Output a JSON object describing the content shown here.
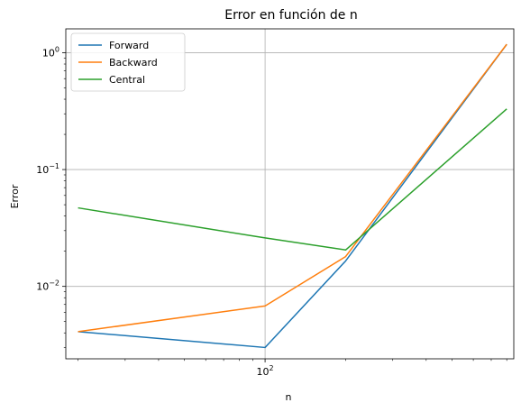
{
  "chart_data": {
    "type": "line",
    "title": "Error en función de n",
    "xlabel": "n",
    "ylabel": "Error",
    "xscale": "log",
    "yscale": "log",
    "xlim": [
      18,
      850
    ],
    "ylim": [
      0.0024,
      1.6
    ],
    "grid": true,
    "legend_position": "top-left",
    "x_tick_labels": [
      {
        "value": 100,
        "base": "10",
        "exp": "2"
      }
    ],
    "y_tick_labels": [
      {
        "value": 1,
        "base": "10",
        "exp": "0"
      },
      {
        "value": 0.1,
        "base": "10",
        "exp": "−1"
      },
      {
        "value": 0.01,
        "base": "10",
        "exp": "−2"
      }
    ],
    "x": [
      20,
      100,
      200,
      800
    ],
    "series": [
      {
        "name": "Forward",
        "color": "#1f77b4",
        "values": [
          0.0041,
          0.003,
          0.0165,
          1.18
        ]
      },
      {
        "name": "Backward",
        "color": "#ff7f0e",
        "values": [
          0.0041,
          0.0068,
          0.018,
          1.18
        ]
      },
      {
        "name": "Central",
        "color": "#2ca02c",
        "values": [
          0.047,
          0.026,
          0.0205,
          0.33
        ]
      }
    ]
  }
}
